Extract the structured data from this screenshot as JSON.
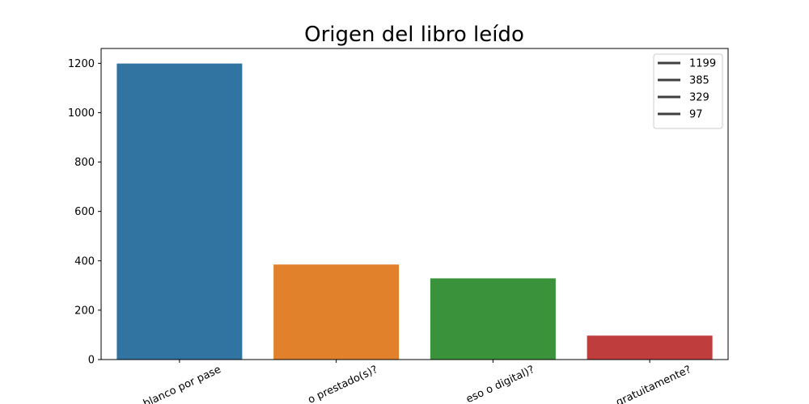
{
  "chart_data": {
    "type": "bar",
    "title": "Origen del libro leído",
    "xlabel": "",
    "ylabel": "",
    "categories": [
      "blanco por pase",
      "o prestado(s)?",
      "eso o digital)?",
      "gratuitamente?"
    ],
    "values": [
      1199,
      385,
      329,
      97
    ],
    "colors": [
      "#3274a1",
      "#e1812c",
      "#3a923a",
      "#c03d3e"
    ],
    "ylim": [
      0,
      1260
    ],
    "yticks": [
      0,
      200,
      400,
      600,
      800,
      1000,
      1200
    ],
    "legend": {
      "position": "top-right",
      "entries": [
        "1199",
        "385",
        "329",
        "97"
      ],
      "line_color": "#3f3f3f"
    },
    "grid": false
  }
}
